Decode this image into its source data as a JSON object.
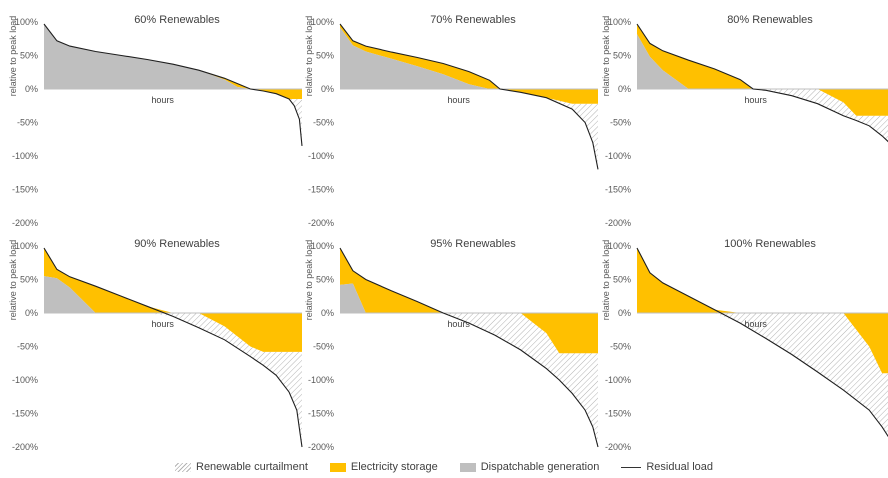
{
  "colors": {
    "curtailment": "#ffffff",
    "curtailment_hatch": "#b3b3b3",
    "storage": "#ffc000",
    "dispatchable": "#bfbfbf",
    "residual": "#1f1f1f",
    "axis": "#bfbfbf",
    "text": "#595959"
  },
  "chart_data": [
    {
      "type": "area",
      "title": "60% Renewables",
      "xlabel": "hours",
      "ylabel": "relative to peak load",
      "yticks": [
        "100%",
        "50%",
        "0%",
        "-50%",
        "-100%",
        "-150%",
        "-200%"
      ],
      "ylim": [
        -2.0,
        1.0
      ],
      "x": [
        0,
        0.05,
        0.1,
        0.2,
        0.3,
        0.4,
        0.5,
        0.6,
        0.7,
        0.75,
        0.8,
        0.85,
        0.9,
        0.95,
        0.97,
        0.99,
        1.0
      ],
      "residual_load": [
        0.97,
        0.72,
        0.64,
        0.56,
        0.5,
        0.44,
        0.37,
        0.28,
        0.16,
        0.08,
        0.0,
        -0.03,
        -0.07,
        -0.15,
        -0.25,
        -0.45,
        -0.85
      ],
      "dispatchable_generation": [
        0.97,
        0.72,
        0.64,
        0.56,
        0.5,
        0.44,
        0.37,
        0.28,
        0.14,
        0.03,
        0.0,
        0.0,
        0.0,
        0.0,
        0.0,
        0.0,
        0.0
      ],
      "storage_lower": [
        0,
        0,
        0,
        0,
        0,
        0,
        0,
        0,
        0,
        0,
        0,
        -0.03,
        -0.07,
        -0.15,
        -0.15,
        -0.15,
        -0.15
      ]
    },
    {
      "type": "area",
      "title": "70% Renewables",
      "xlabel": "hours",
      "ylabel": "relative to peak load",
      "yticks": [
        "100%",
        "50%",
        "0%",
        "-50%",
        "-100%",
        "-150%",
        "-200%"
      ],
      "ylim": [
        -2.0,
        1.0
      ],
      "x": [
        0,
        0.05,
        0.1,
        0.2,
        0.3,
        0.4,
        0.5,
        0.58,
        0.62,
        0.7,
        0.8,
        0.9,
        0.95,
        0.98,
        1.0
      ],
      "residual_load": [
        0.97,
        0.72,
        0.64,
        0.55,
        0.47,
        0.38,
        0.26,
        0.13,
        0.0,
        -0.05,
        -0.13,
        -0.3,
        -0.5,
        -0.8,
        -1.2
      ],
      "dispatchable_generation": [
        0.92,
        0.65,
        0.56,
        0.45,
        0.34,
        0.22,
        0.07,
        0.0,
        0.0,
        0.0,
        0.0,
        0.0,
        0.0,
        0.0,
        0.0
      ],
      "storage_lower": [
        0,
        0,
        0,
        0,
        0,
        0,
        0,
        0,
        0,
        -0.05,
        -0.13,
        -0.22,
        -0.22,
        -0.22,
        -0.22
      ]
    },
    {
      "type": "area",
      "title": "80% Renewables",
      "xlabel": "hours",
      "ylabel": "relative to peak load",
      "yticks": [
        "100%",
        "50%",
        "0%",
        "-50%",
        "-100%",
        "-150%",
        "-200%"
      ],
      "ylim": [
        -2.0,
        1.0
      ],
      "x": [
        0,
        0.05,
        0.1,
        0.2,
        0.3,
        0.4,
        0.45,
        0.5,
        0.6,
        0.7,
        0.8,
        0.85,
        0.9,
        0.95,
        1.0
      ],
      "residual_load": [
        0.97,
        0.68,
        0.57,
        0.43,
        0.3,
        0.14,
        0.0,
        -0.02,
        -0.1,
        -0.22,
        -0.4,
        -0.47,
        -0.55,
        -0.7,
        -0.88
      ],
      "dispatchable_generation": [
        0.82,
        0.48,
        0.28,
        0.0,
        0.0,
        0.0,
        0.0,
        0.0,
        0.0,
        0.0,
        0.0,
        0.0,
        0.0,
        0.0,
        0.0
      ],
      "storage_lower": [
        0,
        0,
        0,
        0,
        0,
        0,
        0,
        0,
        0,
        0,
        -0.2,
        -0.4,
        -0.4,
        -0.4,
        -0.4
      ]
    },
    {
      "type": "area",
      "title": "90% Renewables",
      "xlabel": "hours",
      "ylabel": "relative to peak load",
      "yticks": [
        "100%",
        "50%",
        "0%",
        "-50%",
        "-100%",
        "-150%",
        "-200%"
      ],
      "ylim": [
        -2.0,
        1.0
      ],
      "x": [
        0,
        0.05,
        0.1,
        0.2,
        0.3,
        0.4,
        0.5,
        0.6,
        0.7,
        0.8,
        0.85,
        0.9,
        0.95,
        0.98,
        1.0
      ],
      "residual_load": [
        0.97,
        0.65,
        0.54,
        0.4,
        0.25,
        0.1,
        -0.05,
        -0.22,
        -0.4,
        -0.65,
        -0.78,
        -0.93,
        -1.18,
        -1.45,
        -2.0
      ],
      "dispatchable_generation": [
        0.55,
        0.52,
        0.38,
        0.0,
        0.0,
        0.0,
        0.0,
        0.0,
        0.0,
        0.0,
        0.0,
        0.0,
        0.0,
        0.0,
        0.0
      ],
      "storage_lower": [
        0,
        0,
        0,
        0,
        0,
        0,
        0,
        0,
        -0.2,
        -0.5,
        -0.58,
        -0.58,
        -0.58,
        -0.58,
        -0.58
      ]
    },
    {
      "type": "area",
      "title": "95% Renewables",
      "xlabel": "hours",
      "ylabel": "relative to peak load",
      "yticks": [
        "100%",
        "50%",
        "0%",
        "-50%",
        "-100%",
        "-150%",
        "-200%"
      ],
      "ylim": [
        -2.0,
        1.0
      ],
      "x": [
        0,
        0.05,
        0.1,
        0.2,
        0.3,
        0.4,
        0.5,
        0.6,
        0.7,
        0.8,
        0.85,
        0.9,
        0.95,
        0.98,
        1.0
      ],
      "residual_load": [
        0.97,
        0.63,
        0.5,
        0.33,
        0.17,
        0.0,
        -0.15,
        -0.33,
        -0.55,
        -0.83,
        -1.0,
        -1.2,
        -1.45,
        -1.7,
        -2.0
      ],
      "dispatchable_generation": [
        0.42,
        0.44,
        0.0,
        0.0,
        0.0,
        0.0,
        0.0,
        0.0,
        0.0,
        0.0,
        0.0,
        0.0,
        0.0,
        0.0,
        0.0
      ],
      "storage_lower": [
        0,
        0,
        0,
        0,
        0,
        0,
        0,
        0,
        0,
        -0.3,
        -0.6,
        -0.6,
        -0.6,
        -0.6,
        -0.6
      ]
    },
    {
      "type": "area",
      "title": "100% Renewables",
      "xlabel": "hours",
      "ylabel": "relative to peak load",
      "yticks": [
        "100%",
        "50%",
        "0%",
        "-50%",
        "-100%",
        "-150%",
        "-200%"
      ],
      "ylim": [
        -2.0,
        1.0
      ],
      "x": [
        0,
        0.05,
        0.1,
        0.2,
        0.3,
        0.4,
        0.5,
        0.6,
        0.7,
        0.8,
        0.9,
        0.95,
        1.0
      ],
      "residual_load": [
        0.97,
        0.6,
        0.45,
        0.25,
        0.05,
        -0.15,
        -0.38,
        -0.62,
        -0.88,
        -1.15,
        -1.45,
        -1.7,
        -2.0
      ],
      "dispatchable_generation": [
        0,
        0,
        0,
        0,
        0,
        0,
        0,
        0,
        0,
        0,
        0,
        0,
        0
      ],
      "storage_lower": [
        0,
        0,
        0,
        0,
        0,
        0,
        0,
        0,
        0,
        0,
        -0.5,
        -0.9,
        -0.9
      ]
    }
  ],
  "legend": [
    {
      "label": "Renewable curtailment",
      "key": "curtailment"
    },
    {
      "label": "Electricity storage",
      "key": "storage"
    },
    {
      "label": "Dispatchable generation",
      "key": "dispatchable"
    },
    {
      "label": "Residual load",
      "key": "residual"
    }
  ]
}
